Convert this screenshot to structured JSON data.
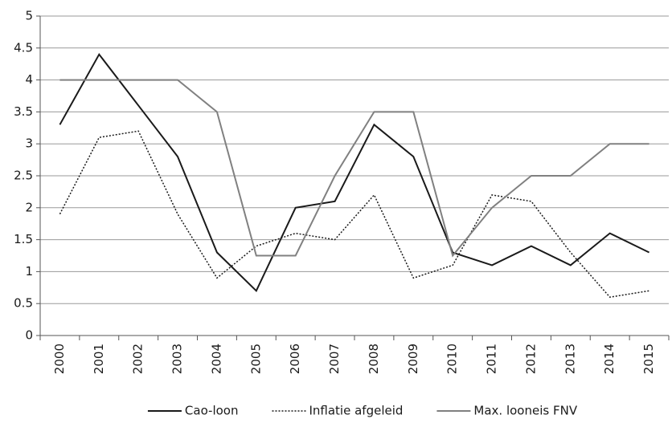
{
  "chart_data": {
    "type": "line",
    "categories": [
      "2000",
      "2001",
      "2002",
      "2003",
      "2004",
      "2005",
      "2006",
      "2007",
      "2008",
      "2009",
      "2010",
      "2011",
      "2012",
      "2013",
      "2014",
      "2015"
    ],
    "series": [
      {
        "name": "Cao-loon",
        "color": "#1a1a1a",
        "style": "solid",
        "values": [
          3.3,
          4.4,
          3.6,
          2.8,
          1.3,
          0.7,
          2.0,
          2.1,
          3.3,
          2.8,
          1.3,
          1.1,
          1.4,
          1.1,
          1.6,
          1.3
        ]
      },
      {
        "name": "Inflatie afgeleid",
        "color": "#1a1a1a",
        "style": "dotted",
        "values": [
          1.9,
          3.1,
          3.2,
          1.9,
          0.9,
          1.4,
          1.6,
          1.5,
          2.2,
          0.9,
          1.1,
          2.2,
          2.1,
          1.3,
          0.6,
          0.7
        ]
      },
      {
        "name": "Max. looneis FNV",
        "color": "#808080",
        "style": "solid",
        "values": [
          4,
          4,
          4,
          4,
          3.5,
          1.25,
          1.25,
          2.5,
          3.5,
          3.5,
          1.25,
          2,
          2.5,
          2.5,
          3,
          3
        ]
      }
    ],
    "ylim": [
      0,
      5
    ],
    "yticks": [
      0,
      0.5,
      1,
      1.5,
      2,
      2.5,
      3,
      3.5,
      4,
      4.5,
      5
    ],
    "grid": true,
    "legend": "bottom"
  }
}
